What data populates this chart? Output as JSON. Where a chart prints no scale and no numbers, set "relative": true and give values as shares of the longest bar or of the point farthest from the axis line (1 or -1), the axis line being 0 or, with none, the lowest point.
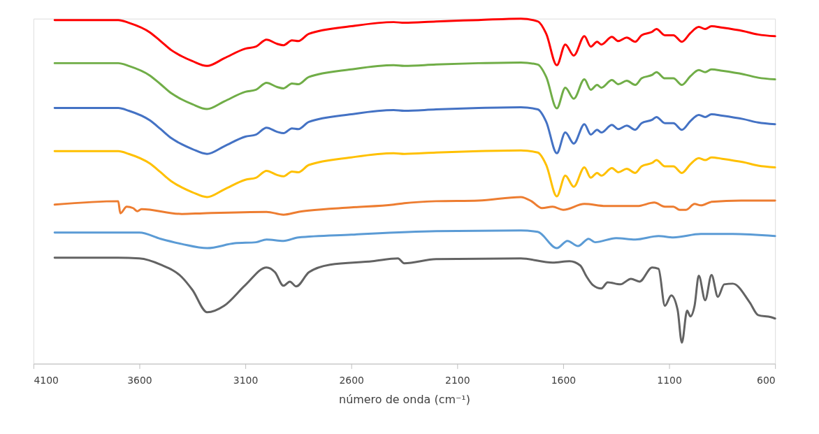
{
  "chart_data": {
    "type": "line",
    "relative": true,
    "xlabel": "número de onda (cm⁻¹)",
    "xlim": [
      4100,
      600
    ],
    "xticks": [
      4100,
      3600,
      3100,
      2600,
      2100,
      1600,
      1100,
      600
    ],
    "grid": false,
    "legend": false,
    "marker": "none",
    "line_style": "solid",
    "series": [
      {
        "color": "#ff0000",
        "x": [
          4000,
          3700,
          3650,
          3550,
          3500,
          3450,
          3400,
          3350,
          3281,
          3200,
          3100,
          3050,
          3000,
          2950,
          2920,
          2880,
          2850,
          2800,
          2600,
          2400,
          2350,
          2200,
          2000,
          1800,
          1720,
          1680,
          1630,
          1590,
          1550,
          1500,
          1470,
          1440,
          1420,
          1370,
          1340,
          1300,
          1260,
          1230,
          1180,
          1160,
          1120,
          1080,
          1040,
          1000,
          960,
          930,
          900,
          850,
          750,
          680,
          600
        ],
        "values": [
          0.996,
          0.996,
          0.988,
          0.96,
          0.935,
          0.909,
          0.891,
          0.877,
          0.863,
          0.885,
          0.913,
          0.919,
          0.939,
          0.927,
          0.923,
          0.937,
          0.935,
          0.956,
          0.978,
          0.99,
          0.988,
          0.992,
          0.996,
          1.0,
          0.992,
          0.956,
          0.865,
          0.925,
          0.893,
          0.949,
          0.919,
          0.933,
          0.925,
          0.947,
          0.935,
          0.945,
          0.933,
          0.952,
          0.962,
          0.97,
          0.952,
          0.952,
          0.933,
          0.958,
          0.976,
          0.97,
          0.978,
          0.974,
          0.964,
          0.954,
          0.949
        ]
      },
      {
        "color": "#70ad47",
        "x": [
          4000,
          3700,
          3650,
          3550,
          3500,
          3450,
          3400,
          3350,
          3281,
          3200,
          3100,
          3050,
          3000,
          2950,
          2920,
          2880,
          2850,
          2800,
          2600,
          2400,
          2350,
          2200,
          2000,
          1800,
          1720,
          1680,
          1630,
          1590,
          1550,
          1500,
          1470,
          1440,
          1420,
          1370,
          1340,
          1300,
          1260,
          1230,
          1180,
          1160,
          1120,
          1080,
          1040,
          1000,
          960,
          930,
          900,
          850,
          750,
          680,
          600
        ],
        "values": [
          0.871,
          0.871,
          0.863,
          0.835,
          0.81,
          0.784,
          0.766,
          0.752,
          0.738,
          0.76,
          0.788,
          0.794,
          0.814,
          0.802,
          0.798,
          0.812,
          0.81,
          0.831,
          0.853,
          0.865,
          0.863,
          0.867,
          0.871,
          0.873,
          0.867,
          0.831,
          0.74,
          0.8,
          0.768,
          0.824,
          0.794,
          0.808,
          0.8,
          0.822,
          0.81,
          0.82,
          0.808,
          0.827,
          0.837,
          0.845,
          0.827,
          0.827,
          0.808,
          0.833,
          0.851,
          0.845,
          0.853,
          0.849,
          0.839,
          0.829,
          0.824
        ]
      },
      {
        "color": "#4472c4",
        "x": [
          4000,
          3700,
          3650,
          3550,
          3500,
          3450,
          3400,
          3350,
          3281,
          3200,
          3100,
          3050,
          3000,
          2950,
          2920,
          2880,
          2850,
          2800,
          2600,
          2400,
          2350,
          2200,
          2000,
          1800,
          1720,
          1680,
          1630,
          1590,
          1550,
          1500,
          1470,
          1440,
          1420,
          1370,
          1340,
          1300,
          1260,
          1230,
          1180,
          1160,
          1120,
          1080,
          1040,
          1000,
          960,
          930,
          900,
          850,
          750,
          680,
          600
        ],
        "values": [
          0.741,
          0.741,
          0.733,
          0.705,
          0.68,
          0.654,
          0.636,
          0.622,
          0.608,
          0.63,
          0.658,
          0.664,
          0.684,
          0.672,
          0.668,
          0.682,
          0.68,
          0.701,
          0.723,
          0.735,
          0.733,
          0.737,
          0.741,
          0.743,
          0.737,
          0.701,
          0.61,
          0.67,
          0.638,
          0.694,
          0.664,
          0.678,
          0.67,
          0.692,
          0.68,
          0.69,
          0.678,
          0.697,
          0.707,
          0.715,
          0.697,
          0.697,
          0.678,
          0.703,
          0.721,
          0.715,
          0.723,
          0.719,
          0.709,
          0.699,
          0.694
        ]
      },
      {
        "color": "#ffc000",
        "x": [
          4000,
          3700,
          3650,
          3550,
          3500,
          3450,
          3400,
          3350,
          3281,
          3200,
          3100,
          3050,
          3000,
          2950,
          2920,
          2880,
          2850,
          2800,
          2600,
          2400,
          2350,
          2200,
          2000,
          1800,
          1720,
          1680,
          1630,
          1590,
          1550,
          1500,
          1470,
          1440,
          1420,
          1370,
          1340,
          1300,
          1260,
          1230,
          1180,
          1160,
          1120,
          1080,
          1040,
          1000,
          960,
          930,
          900,
          850,
          750,
          680,
          600
        ],
        "values": [
          0.616,
          0.616,
          0.608,
          0.58,
          0.555,
          0.529,
          0.511,
          0.497,
          0.483,
          0.505,
          0.533,
          0.539,
          0.559,
          0.547,
          0.543,
          0.557,
          0.555,
          0.576,
          0.598,
          0.61,
          0.608,
          0.612,
          0.616,
          0.618,
          0.612,
          0.576,
          0.485,
          0.545,
          0.513,
          0.569,
          0.539,
          0.553,
          0.545,
          0.567,
          0.555,
          0.565,
          0.553,
          0.572,
          0.582,
          0.59,
          0.572,
          0.572,
          0.553,
          0.578,
          0.596,
          0.59,
          0.598,
          0.594,
          0.584,
          0.574,
          0.569
        ]
      },
      {
        "color": "#ed7d31",
        "x": [
          4000,
          3700,
          3690,
          3660,
          3630,
          3610,
          3590,
          3400,
          3300,
          3000,
          2920,
          2850,
          2800,
          2600,
          2400,
          2350,
          2200,
          2000,
          1800,
          1750,
          1700,
          1650,
          1600,
          1500,
          1400,
          1250,
          1170,
          1120,
          1080,
          1050,
          1020,
          980,
          950,
          900,
          760,
          600
        ],
        "values": [
          0.461,
          0.471,
          0.436,
          0.455,
          0.451,
          0.442,
          0.448,
          0.434,
          0.436,
          0.44,
          0.432,
          0.44,
          0.444,
          0.453,
          0.461,
          0.465,
          0.471,
          0.473,
          0.483,
          0.471,
          0.451,
          0.455,
          0.446,
          0.463,
          0.457,
          0.457,
          0.467,
          0.455,
          0.455,
          0.446,
          0.446,
          0.463,
          0.459,
          0.469,
          0.473,
          0.473
        ]
      },
      {
        "color": "#5b9bd5",
        "x": [
          4000,
          3700,
          3600,
          3500,
          3400,
          3280,
          3150,
          3050,
          3000,
          2920,
          2850,
          2600,
          2200,
          1800,
          1720,
          1630,
          1580,
          1530,
          1480,
          1450,
          1350,
          1260,
          1150,
          1080,
          950,
          800,
          600
        ],
        "values": [
          0.38,
          0.38,
          0.38,
          0.362,
          0.347,
          0.335,
          0.349,
          0.352,
          0.36,
          0.356,
          0.366,
          0.374,
          0.384,
          0.386,
          0.382,
          0.335,
          0.356,
          0.341,
          0.362,
          0.352,
          0.364,
          0.36,
          0.37,
          0.366,
          0.376,
          0.376,
          0.37
        ]
      },
      {
        "color": "#636363",
        "x": [
          4000,
          3700,
          3600,
          3500,
          3400,
          3350,
          3280,
          3200,
          3100,
          3000,
          2960,
          2920,
          2890,
          2860,
          2800,
          2700,
          2500,
          2380,
          2350,
          2200,
          1800,
          1650,
          1570,
          1520,
          1490,
          1460,
          1420,
          1390,
          1330,
          1280,
          1240,
          1180,
          1150,
          1120,
          1090,
          1060,
          1040,
          1015,
          1000,
          980,
          960,
          930,
          900,
          870,
          840,
          800,
          720,
          680,
          620,
          600
        ],
        "values": [
          0.307,
          0.307,
          0.305,
          0.287,
          0.251,
          0.214,
          0.149,
          0.168,
          0.228,
          0.279,
          0.265,
          0.226,
          0.238,
          0.224,
          0.265,
          0.287,
          0.297,
          0.305,
          0.291,
          0.303,
          0.305,
          0.293,
          0.297,
          0.285,
          0.253,
          0.228,
          0.218,
          0.236,
          0.23,
          0.246,
          0.238,
          0.279,
          0.275,
          0.168,
          0.198,
          0.156,
          0.061,
          0.154,
          0.137,
          0.168,
          0.255,
          0.184,
          0.257,
          0.194,
          0.23,
          0.232,
          0.178,
          0.141,
          0.135,
          0.131
        ]
      }
    ]
  }
}
